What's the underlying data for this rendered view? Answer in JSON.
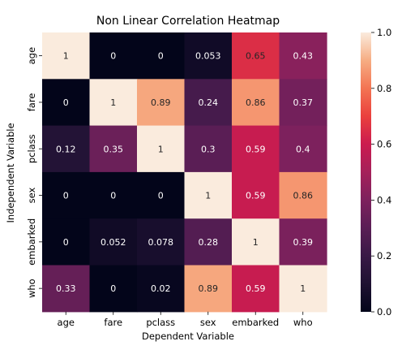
{
  "chart_data": {
    "type": "heatmap",
    "title": "Non Linear Correlation Heatmap",
    "xlabel": "Dependent Variable",
    "ylabel": "Independent Variable",
    "x_categories": [
      "age",
      "fare",
      "pclass",
      "sex",
      "embarked",
      "who"
    ],
    "y_categories": [
      "age",
      "fare",
      "pclass",
      "sex",
      "embarked",
      "who"
    ],
    "values": [
      [
        1,
        0,
        0,
        0.053,
        0.65,
        0.43
      ],
      [
        0,
        1,
        0.89,
        0.24,
        0.86,
        0.37
      ],
      [
        0.12,
        0.35,
        1,
        0.3,
        0.59,
        0.4
      ],
      [
        0,
        0,
        0,
        1,
        0.59,
        0.86
      ],
      [
        0,
        0.052,
        0.078,
        0.28,
        1,
        0.39
      ],
      [
        0.33,
        0,
        0.02,
        0.89,
        0.59,
        1
      ]
    ],
    "annotations": [
      [
        "1",
        "0",
        "0",
        "0.053",
        "0.65",
        "0.43"
      ],
      [
        "0",
        "1",
        "0.89",
        "0.24",
        "0.86",
        "0.37"
      ],
      [
        "0.12",
        "0.35",
        "1",
        "0.3",
        "0.59",
        "0.4"
      ],
      [
        "0",
        "0",
        "0",
        "1",
        "0.59",
        "0.86"
      ],
      [
        "0",
        "0.052",
        "0.078",
        "0.28",
        "1",
        "0.39"
      ],
      [
        "0.33",
        "0",
        "0.02",
        "0.89",
        "0.59",
        "1"
      ]
    ],
    "colorbar": {
      "range": [
        0,
        1
      ],
      "ticks": [
        0.0,
        0.2,
        0.4,
        0.6,
        0.8,
        1.0
      ],
      "tick_labels": [
        "0.0",
        "0.2",
        "0.4",
        "0.6",
        "0.8",
        "1.0"
      ],
      "colormap": "rocket"
    }
  }
}
